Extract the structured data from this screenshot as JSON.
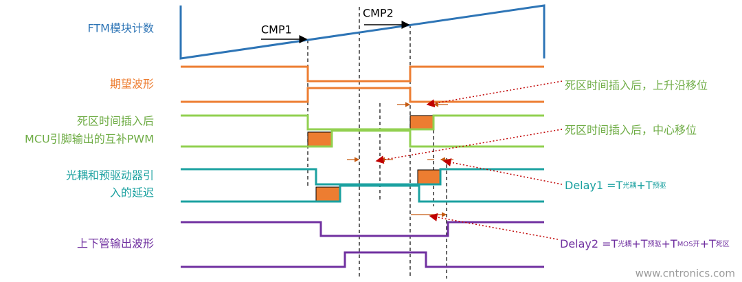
{
  "signals": {
    "counter": "FTM模块计数",
    "cmp1": "CMP1",
    "cmp2": "CMP2",
    "expected": "期望波形",
    "mcu": [
      "死区时间插入后",
      "MCU引脚输出的互补PWM"
    ],
    "driver": [
      "光耦和预驱动器引",
      "入的延迟"
    ],
    "output": "上下管输出波形"
  },
  "annotations": {
    "rising_shift": "死区时间插入后，上升沿移位",
    "center_shift": "死区时间插入后，中心移位",
    "delay1": [
      "Delay1 =T",
      "光耦",
      "+T",
      "预驱"
    ],
    "delay2": [
      "Delay2 =T",
      "光耦",
      "+T",
      "预驱",
      "+T",
      "MOS开",
      "+T",
      "死区"
    ]
  },
  "watermark": "www.cntronics.com"
}
